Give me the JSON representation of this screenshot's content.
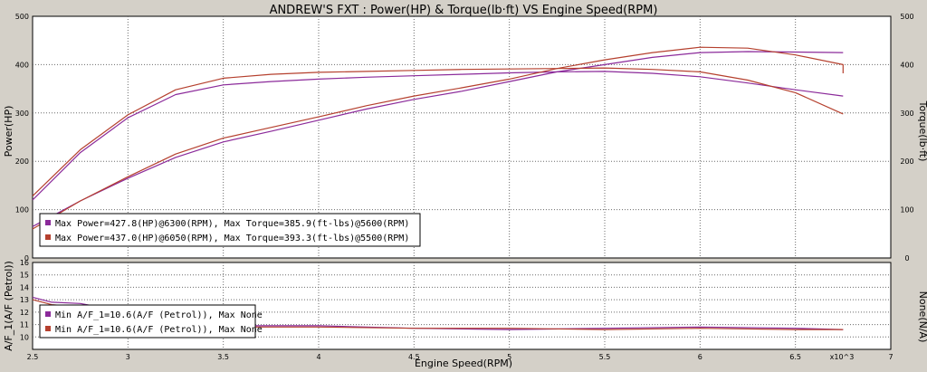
{
  "chart_data": {
    "title": "ANDREW'S FXT : Power(HP) & Torque(lb·ft) VS Engine Speed(RPM)",
    "xlabel": "Engine Speed(RPM)",
    "x_multiplier_label": "x10^3",
    "x_ticks": [
      "2.5",
      "3",
      "3.5",
      "4",
      "4.5",
      "5",
      "5.5",
      "6",
      "6.5",
      "7"
    ],
    "xlim": [
      2.5,
      7
    ],
    "colors": {
      "run1": "#8b2a9a",
      "run2": "#b5402e",
      "grid": "#6b6b6b",
      "background": "#d4d0c8",
      "plot_bg": "#ffffff"
    },
    "charts": [
      {
        "type": "line",
        "ylabel_left": "Power(HP)",
        "ylabel_right": "Torque(lb·ft)",
        "ylim": [
          0,
          500
        ],
        "y_ticks": [
          "0",
          "100",
          "200",
          "300",
          "400",
          "500"
        ],
        "y_ticks_right": [
          "0",
          "100",
          "200",
          "300",
          "400",
          "500"
        ],
        "legend": [
          "Max Power=427.8(HP)@6300(RPM), Max Torque=385.9(ft-lbs)@5600(RPM)",
          "Max Power=437.0(HP)@6050(RPM), Max Torque=393.3(ft-lbs)@5500(RPM)"
        ],
        "series": [
          {
            "run": "run1",
            "kind": "power",
            "x": [
              2.5,
              2.75,
              3.0,
              3.25,
              3.5,
              3.75,
              4.0,
              4.25,
              4.5,
              4.75,
              5.0,
              5.25,
              5.5,
              5.75,
              6.0,
              6.25,
              6.5,
              6.75
            ],
            "y": [
              65,
              118,
              165,
              208,
              240,
              262,
              285,
              308,
              328,
              345,
              365,
              385,
              400,
              415,
              425,
              427,
              426,
              425
            ]
          },
          {
            "run": "run1",
            "kind": "torque",
            "x": [
              2.5,
              2.75,
              3.0,
              3.25,
              3.5,
              3.75,
              4.0,
              4.25,
              4.5,
              4.75,
              5.0,
              5.25,
              5.5,
              5.75,
              6.0,
              6.25,
              6.5,
              6.75
            ],
            "y": [
              120,
              218,
              290,
              338,
              358,
              365,
              370,
              374,
              377,
              380,
              383,
              385,
              386,
              382,
              375,
              362,
              348,
              335
            ]
          },
          {
            "run": "run2",
            "kind": "power",
            "x": [
              2.5,
              2.75,
              3.0,
              3.25,
              3.5,
              3.75,
              4.0,
              4.25,
              4.5,
              4.75,
              5.0,
              5.25,
              5.5,
              5.75,
              6.0,
              6.25,
              6.5,
              6.75,
              6.75
            ],
            "y": [
              60,
              118,
              168,
              215,
              248,
              270,
              292,
              315,
              335,
              352,
              370,
              392,
              410,
              425,
              436,
              434,
              420,
              400,
              382
            ]
          },
          {
            "run": "run2",
            "kind": "torque",
            "x": [
              2.5,
              2.75,
              3.0,
              3.25,
              3.5,
              3.75,
              4.0,
              4.25,
              4.5,
              4.75,
              5.0,
              5.25,
              5.5,
              5.75,
              6.0,
              6.25,
              6.5,
              6.75
            ],
            "y": [
              128,
              224,
              296,
              348,
              372,
              380,
              384,
              386,
              388,
              390,
              391,
              392,
              393,
              390,
              385,
              368,
              342,
              298
            ]
          }
        ]
      },
      {
        "type": "line",
        "ylabel_left": "A/F_1(A/F (Petrol))",
        "ylabel_right": "None(N/A)",
        "ylim": [
          9,
          16
        ],
        "y_ticks": [
          "10",
          "11",
          "12",
          "13",
          "14",
          "15",
          "16"
        ],
        "legend": [
          "Min A/F_1=10.6(A/F (Petrol)), Max None",
          "Min A/F_1=10.6(A/F (Petrol)), Max None"
        ],
        "series": [
          {
            "run": "run1",
            "kind": "af",
            "x": [
              2.5,
              2.6,
              2.75,
              3.0,
              3.25,
              3.5,
              4.0,
              4.5,
              5.0,
              5.5,
              6.0,
              6.5,
              6.75
            ],
            "y": [
              13.2,
              12.8,
              12.7,
              12.0,
              11.4,
              10.9,
              10.9,
              10.7,
              10.6,
              10.7,
              10.8,
              10.7,
              10.6
            ]
          },
          {
            "run": "run2",
            "kind": "af",
            "x": [
              2.5,
              2.6,
              2.75,
              3.0,
              3.25,
              3.5,
              4.0,
              4.5,
              5.0,
              5.5,
              6.0,
              6.5,
              6.75
            ],
            "y": [
              13.0,
              12.6,
              12.4,
              11.8,
              11.2,
              10.8,
              10.8,
              10.7,
              10.7,
              10.6,
              10.7,
              10.6,
              10.6
            ]
          }
        ]
      }
    ]
  }
}
